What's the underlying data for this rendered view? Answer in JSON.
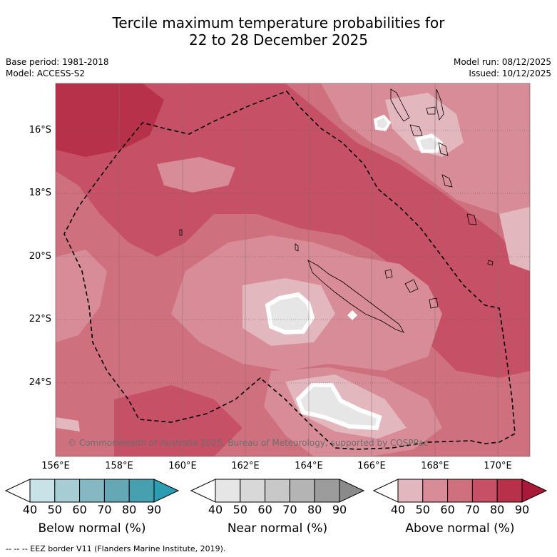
{
  "title_line1": "Tercile maximum temperature probabilities for",
  "title_line2": "22 to 28 December 2025",
  "base_period": "Base period: 1981-2018",
  "model": "Model: ACCESS-S2",
  "model_run": "Model run: 08/12/2025",
  "issued": "Issued: 10/12/2025",
  "lat_labels": [
    "16°S",
    "18°S",
    "20°S",
    "22°S",
    "24°S"
  ],
  "lon_labels": [
    "156°E",
    "158°E",
    "160°E",
    "162°E",
    "164°E",
    "166°E",
    "168°E",
    "170°E"
  ],
  "colorbars": [
    {
      "title": "Below normal (%)",
      "ticks": [
        "40",
        "50",
        "60",
        "70",
        "80",
        "90"
      ],
      "colors": [
        "#ffffff",
        "#c9e2e7",
        "#a6cdd3",
        "#86b8c3",
        "#66a7b6",
        "#46a0b0",
        "#2d9bb0"
      ]
    },
    {
      "title": "Near normal (%)",
      "ticks": [
        "40",
        "50",
        "60",
        "70",
        "80",
        "90"
      ],
      "colors": [
        "#ffffff",
        "#e6e6e6",
        "#d8d8d8",
        "#c8c8c8",
        "#b4b4b4",
        "#9c9c9c",
        "#8a8a8a"
      ]
    },
    {
      "title": "Above normal (%)",
      "ticks": [
        "40",
        "50",
        "60",
        "70",
        "80",
        "90"
      ],
      "colors": [
        "#ffffff",
        "#e3b7be",
        "#d88c98",
        "#cf707e",
        "#c65066",
        "#b8314a",
        "#a8193a"
      ]
    }
  ],
  "copyright": "© Commonwealth of Australia 2025, Bureau of Meteorology, supported by COSPPac",
  "footer": "-- -- -- EEZ border V11 (Flanders Marine Institute, 2019).",
  "palette": {
    "above_50": "#e3b7be",
    "above_60": "#d88c98",
    "above_70": "#cf707e",
    "above_80": "#c65066",
    "above_90": "#b8314a",
    "near_50": "#e6e6e6",
    "land_outline": "#000000"
  }
}
